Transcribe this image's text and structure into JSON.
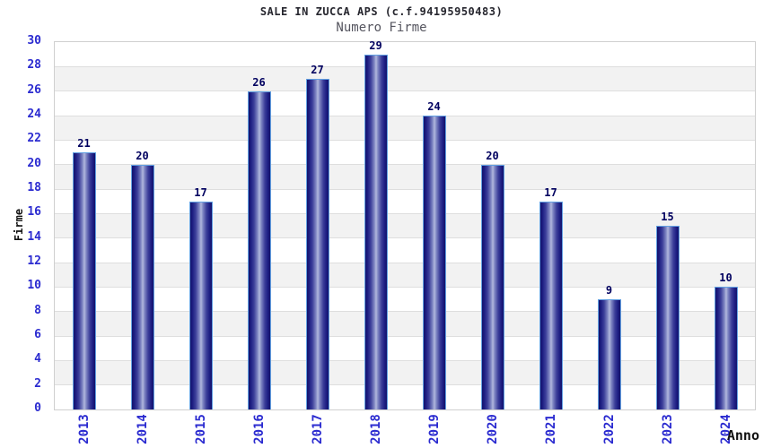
{
  "chart_data": {
    "type": "bar",
    "title": "SALE IN ZUCCA APS (c.f.94195950483)",
    "subtitle": "Numero Firme",
    "xlabel": "Anno",
    "ylabel": "Firme",
    "categories": [
      "2013",
      "2014",
      "2015",
      "2016",
      "2017",
      "2018",
      "2019",
      "2020",
      "2021",
      "2022",
      "2023",
      "2024"
    ],
    "values": [
      21,
      20,
      17,
      26,
      27,
      29,
      24,
      20,
      17,
      9,
      15,
      10
    ],
    "ylim": [
      0,
      30
    ],
    "ytick_step": 2,
    "grid": "horizontal",
    "legend": "none",
    "colors": {
      "bar_edge": "#13136a",
      "bar_center": "#b2b9de",
      "bar_outline": "#62a0e2",
      "value_label": "#00005f",
      "tick_label": "#2b2bd0",
      "title": "#26262e",
      "subtitle": "#55555f",
      "band_alt": "#f2f2f2",
      "band_main": "#ffffff",
      "gridline": "#dedede",
      "plot_border": "#cfcfcf",
      "axis_title": "#111111",
      "background": "#ffffff"
    }
  }
}
